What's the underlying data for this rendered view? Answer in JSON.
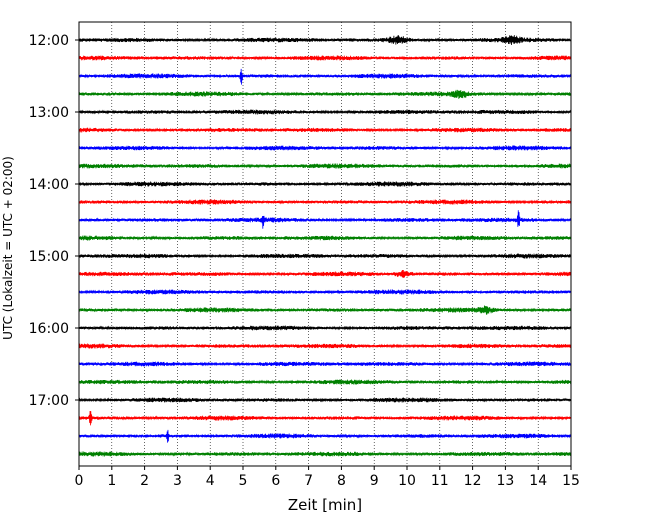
{
  "chart_data": {
    "type": "line",
    "title": "",
    "xlabel": "Zeit  [min]",
    "ylabel": "UTC (Lokalzeit = UTC + 02:00)",
    "xlim": [
      0,
      15
    ],
    "xticks": [
      0,
      1,
      2,
      3,
      4,
      5,
      6,
      7,
      8,
      9,
      10,
      11,
      12,
      13,
      14,
      15
    ],
    "ytick_labels": [
      "12:00",
      "13:00",
      "14:00",
      "15:00",
      "16:00",
      "17:00"
    ],
    "trace_start_time": "12:00",
    "trace_interval_min": 15,
    "trace_count": 24,
    "trace_colors": [
      "#000000",
      "#ff0000",
      "#0000ff",
      "#008000"
    ],
    "grid": "vertical dotted lines at each minute",
    "events": [
      {
        "trace_start": "12:00",
        "minute": 9.7,
        "description": "wider burst"
      },
      {
        "trace_start": "12:00",
        "minute": 13.2,
        "description": "burst"
      },
      {
        "trace_start": "12:30",
        "minute": 4.95,
        "description": "spike"
      },
      {
        "trace_start": "12:45",
        "minute": 11.6,
        "description": "burst"
      },
      {
        "trace_start": "14:30",
        "minute": 5.6,
        "description": "spike"
      },
      {
        "trace_start": "14:30",
        "minute": 13.4,
        "description": "spike"
      },
      {
        "trace_start": "15:15",
        "minute": 9.9,
        "description": "burst"
      },
      {
        "trace_start": "15:45",
        "minute": 12.4,
        "description": "burst"
      },
      {
        "trace_start": "17:15",
        "minute": 0.35,
        "description": "spike"
      },
      {
        "trace_start": "17:30",
        "minute": 2.7,
        "description": "spike"
      }
    ]
  }
}
